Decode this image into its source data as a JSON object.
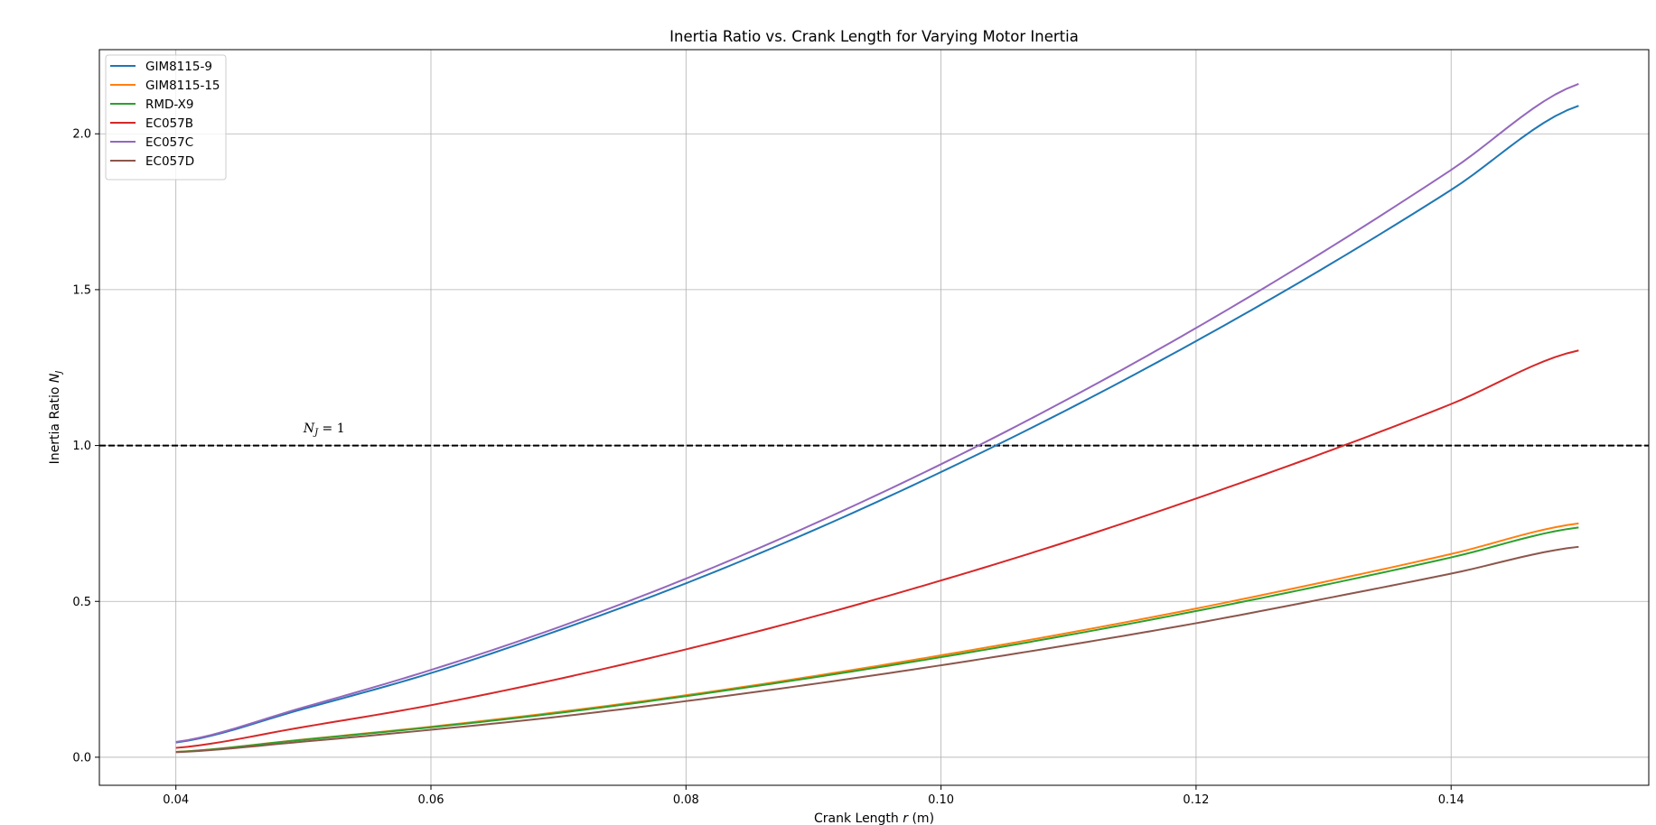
{
  "chart_data": {
    "type": "line",
    "title": "Inertia Ratio vs. Crank Length for Varying Motor Inertia",
    "xlabel_prefix": "Crank Length ",
    "xlabel_var": "r",
    "xlabel_suffix": " (m)",
    "ylabel_prefix": "Inertia Ratio ",
    "ylabel_var": "N",
    "ylabel_sub": "J",
    "xlim": [
      0.034,
      0.1555
    ],
    "ylim": [
      -0.09,
      2.27
    ],
    "xticks": [
      0.04,
      0.06,
      0.08,
      0.1,
      0.12,
      0.14
    ],
    "xtick_labels": [
      "0.04",
      "0.06",
      "0.08",
      "0.10",
      "0.12",
      "0.14"
    ],
    "yticks": [
      0.0,
      0.5,
      1.0,
      1.5,
      2.0
    ],
    "ytick_labels": [
      "0.0",
      "0.5",
      "1.0",
      "1.5",
      "2.0"
    ],
    "grid": true,
    "legend_position": "top-left",
    "x": [
      0.04,
      0.05,
      0.06,
      0.07,
      0.08,
      0.09,
      0.1,
      0.11,
      0.12,
      0.13,
      0.14,
      0.15
    ],
    "series": [
      {
        "name": "GIM8115-9",
        "color": "#1f77b4",
        "values": [
          0.047,
          0.155,
          0.27,
          0.407,
          0.558,
          0.728,
          0.915,
          1.117,
          1.335,
          1.569,
          1.82,
          2.09
        ]
      },
      {
        "name": "GIM8115-15",
        "color": "#ff7f0e",
        "values": [
          0.017,
          0.057,
          0.098,
          0.145,
          0.199,
          0.26,
          0.327,
          0.399,
          0.477,
          0.562,
          0.652,
          0.75
        ]
      },
      {
        "name": "RMD-X9",
        "color": "#2ca02c",
        "values": [
          0.017,
          0.056,
          0.096,
          0.142,
          0.196,
          0.256,
          0.321,
          0.392,
          0.469,
          0.552,
          0.641,
          0.737
        ]
      },
      {
        "name": "EC057B",
        "color": "#d62728",
        "values": [
          0.03,
          0.097,
          0.167,
          0.251,
          0.346,
          0.451,
          0.567,
          0.693,
          0.83,
          0.976,
          1.133,
          1.305
        ]
      },
      {
        "name": "EC057C",
        "color": "#9467bd",
        "values": [
          0.049,
          0.16,
          0.28,
          0.417,
          0.573,
          0.748,
          0.94,
          1.15,
          1.377,
          1.622,
          1.884,
          2.16
        ]
      },
      {
        "name": "EC057D",
        "color": "#8c564b",
        "values": [
          0.016,
          0.05,
          0.088,
          0.13,
          0.18,
          0.235,
          0.295,
          0.36,
          0.43,
          0.508,
          0.589,
          0.675
        ]
      }
    ],
    "reference_line": {
      "y": 1.0,
      "style": "dashed",
      "color": "#000000"
    },
    "annotation": {
      "var": "N",
      "sub": "J",
      "rest": " = 1",
      "x": 0.05,
      "y": 1.03
    }
  }
}
